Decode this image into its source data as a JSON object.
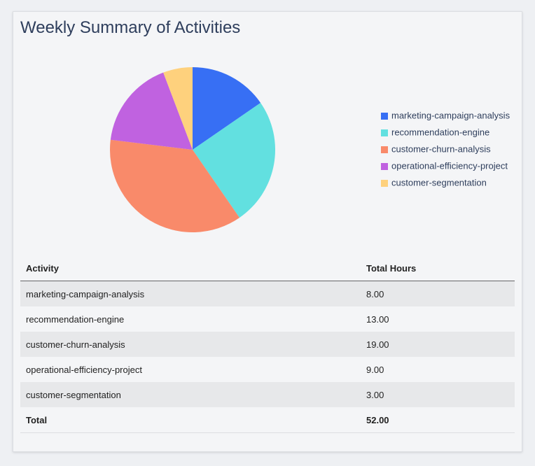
{
  "title": "Weekly Summary of Activities",
  "chart_data": {
    "type": "pie",
    "categories": [
      "marketing-campaign-analysis",
      "recommendation-engine",
      "customer-churn-analysis",
      "operational-efficiency-project",
      "customer-segmentation"
    ],
    "values": [
      8,
      13,
      19,
      9,
      3
    ],
    "colors": [
      "#376ff4",
      "#62e0e0",
      "#f98a6a",
      "#c062e0",
      "#fed17d"
    ],
    "legend": "right"
  },
  "table": {
    "header": [
      "Activity",
      "Total Hours"
    ],
    "rows": [
      [
        "marketing-campaign-analysis",
        "8.00"
      ],
      [
        "recommendation-engine",
        "13.00"
      ],
      [
        "customer-churn-analysis",
        "19.00"
      ],
      [
        "operational-efficiency-project",
        "9.00"
      ],
      [
        "customer-segmentation",
        "3.00"
      ]
    ],
    "total": [
      "Total",
      "52.00"
    ]
  }
}
